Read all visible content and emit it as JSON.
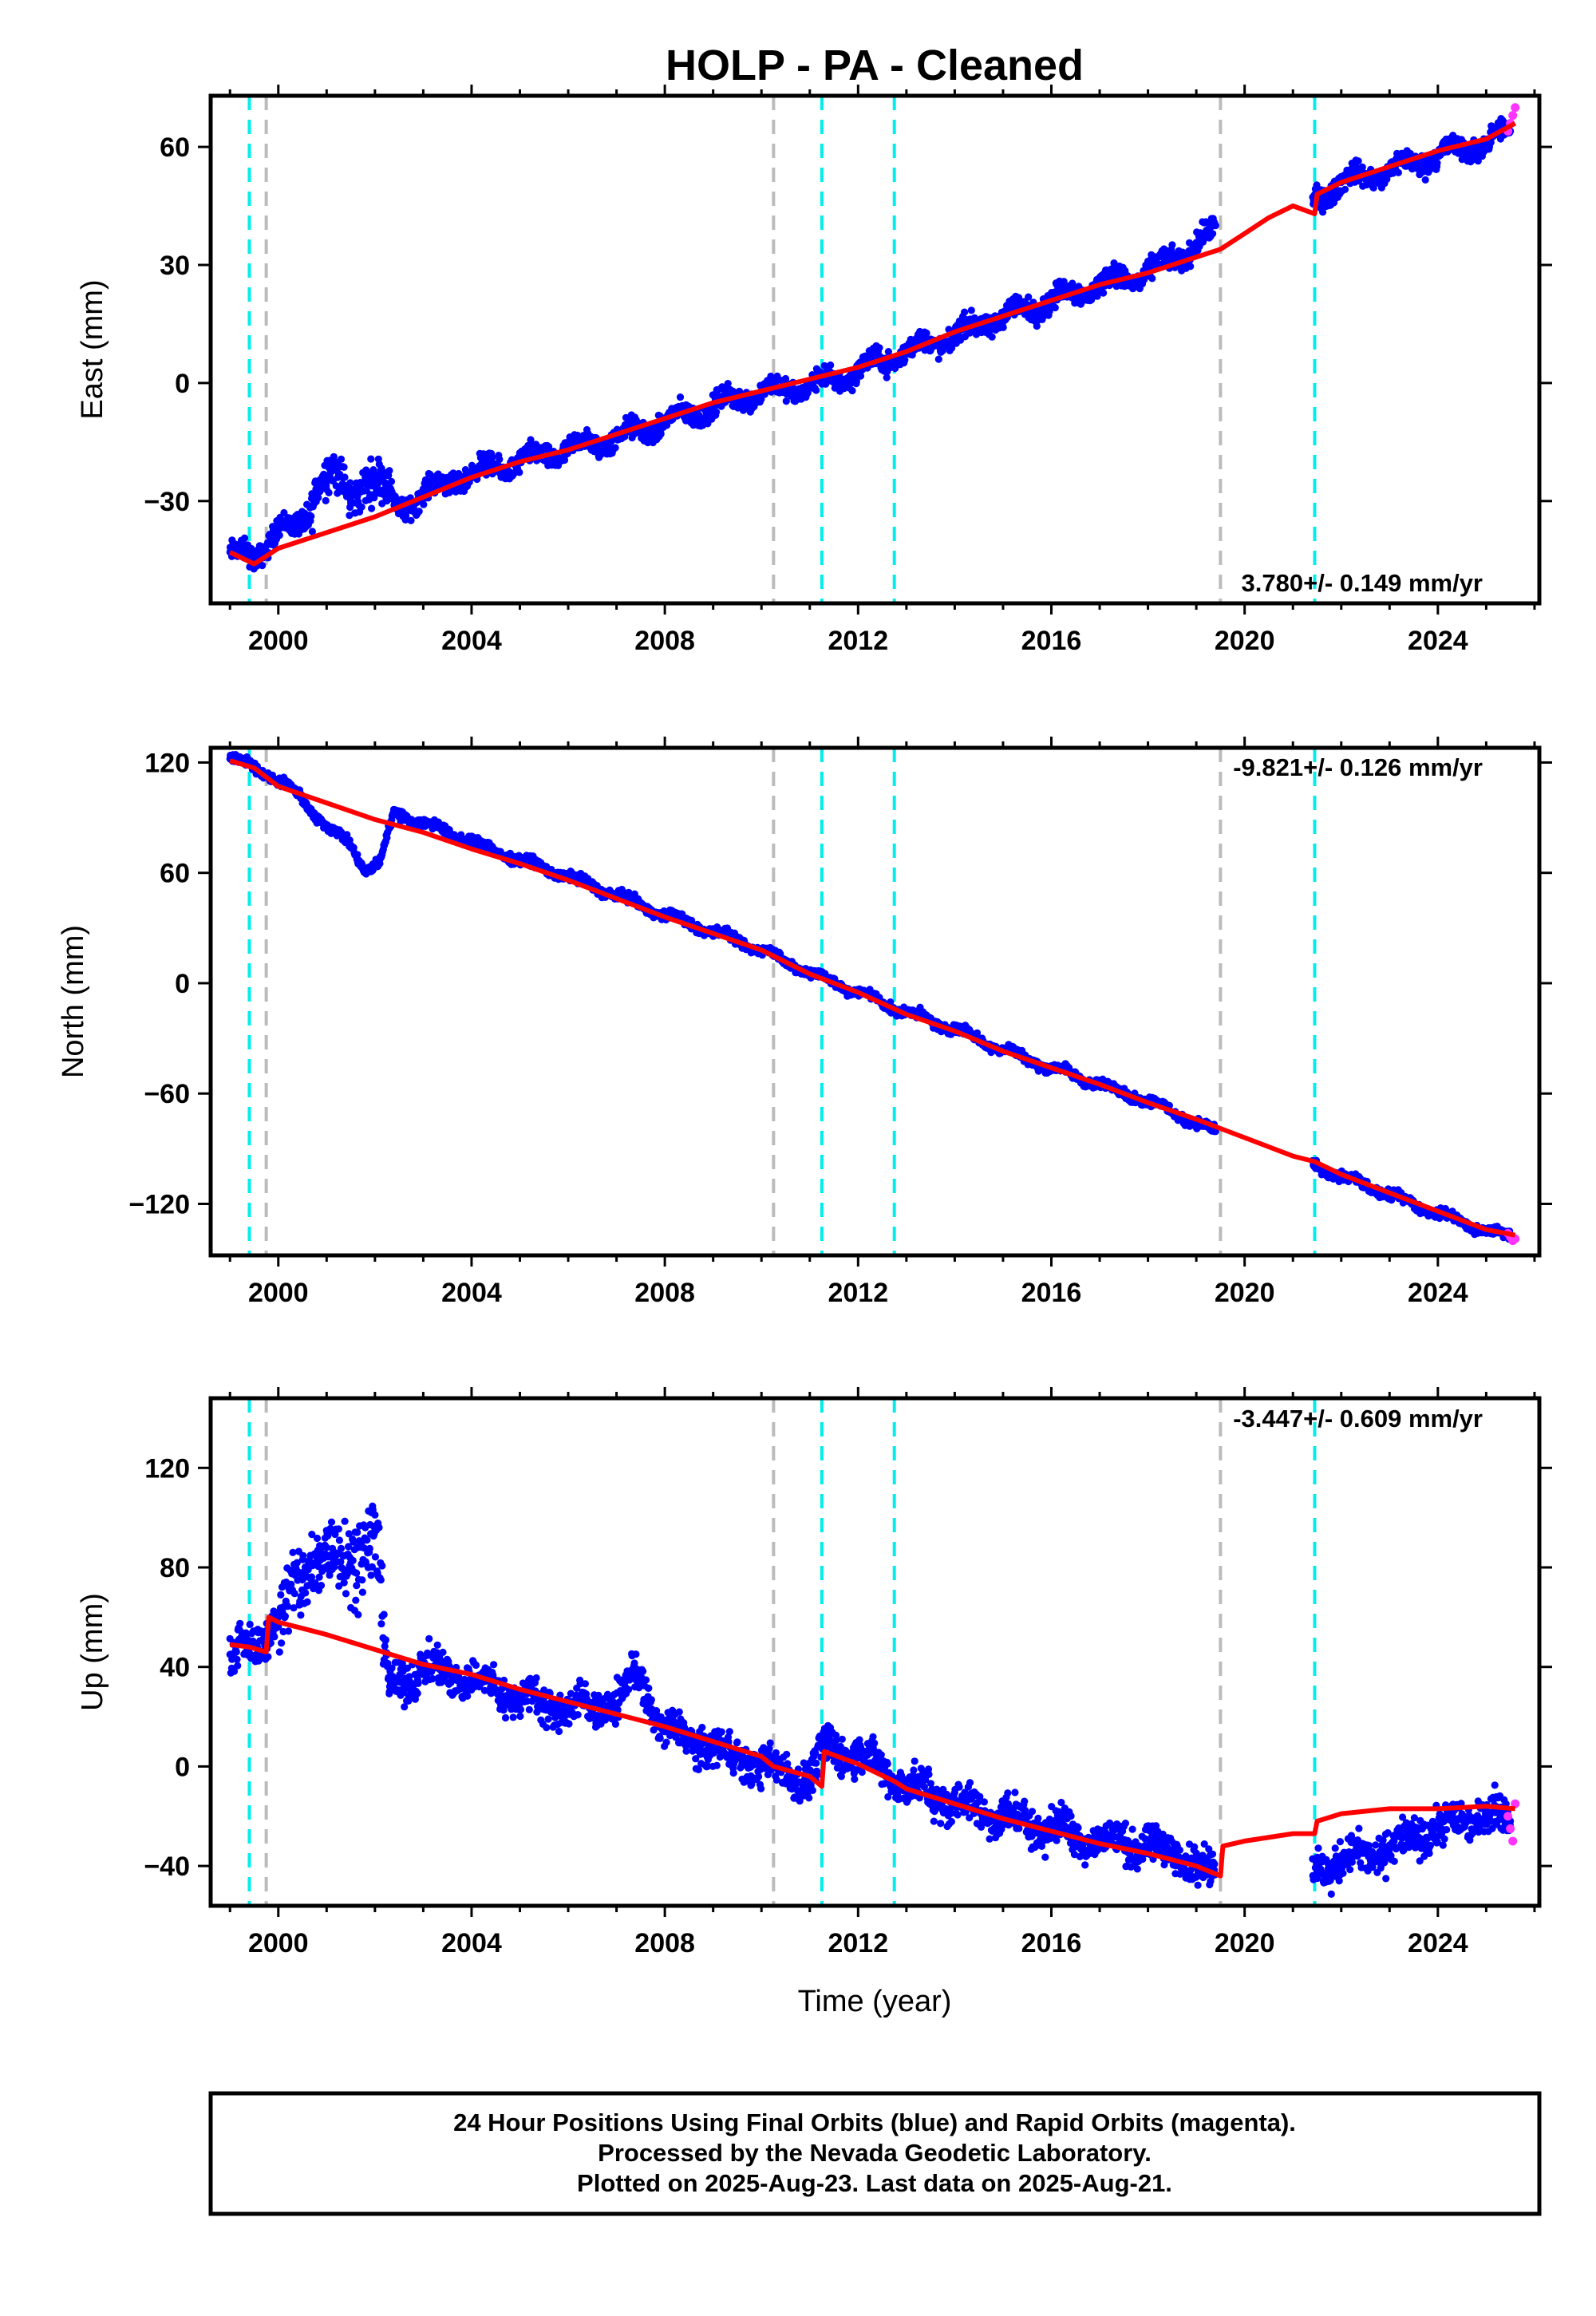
{
  "title": "HOLP  - PA - Cleaned",
  "xlabel": "Time (year)",
  "colors": {
    "final_orbits": "#0000ff",
    "rapid_orbits": "#ff33ff",
    "model": "#ff0000",
    "equipment_change": "#00eeee",
    "other_event": "#bbbbbb"
  },
  "footer": {
    "line1": "24 Hour Positions Using Final Orbits (blue) and Rapid Orbits (magenta).",
    "line2": "Processed by the Nevada Geodetic Laboratory.",
    "line3": "Plotted on 2025-Aug-23. Last data on 2025-Aug-21."
  },
  "chart_data": [
    {
      "type": "scatter",
      "component": "east",
      "ylabel": "East (mm)",
      "xlim": [
        1998.6,
        2026.1
      ],
      "ylim": [
        -56,
        73
      ],
      "xticks": [
        2000,
        2004,
        2008,
        2012,
        2016,
        2020,
        2024
      ],
      "yticks": [
        -30,
        0,
        30,
        60
      ],
      "rate_text": "3.780+/- 0.149 mm/yr",
      "rate_position": "bottom-right",
      "vlines_cyan": [
        1999.4,
        2011.25,
        2012.75,
        2021.45
      ],
      "vlines_gray": [
        1999.75,
        2010.25,
        2019.5
      ],
      "gaps": [
        [
          2019.4,
          2021.4
        ]
      ],
      "series": [
        {
          "role": "final_orbits",
          "x": [
            1999.0,
            1999.5,
            2000.0,
            2000.3,
            2000.6,
            2000.8,
            2001.1,
            2001.5,
            2001.8,
            2002.1,
            2002.5,
            2003.0,
            2004.0,
            2005.0,
            2006.0,
            2007.0,
            2008.0,
            2009.0,
            2010.0,
            2011.0,
            2012.0,
            2013.0,
            2014.0,
            2015.0,
            2016.0,
            2017.0,
            2018.0,
            2019.0,
            2019.3,
            2021.5,
            2022.0,
            2023.0,
            2024.0,
            2025.0,
            2025.5
          ],
          "y": [
            -43,
            -45,
            -36,
            -38,
            -35,
            -25,
            -22,
            -30,
            -24,
            -25,
            -32,
            -28,
            -23,
            -20,
            -17,
            -14,
            -10,
            -6,
            -2,
            -1,
            3,
            8,
            12,
            17,
            21,
            25,
            28,
            35,
            38,
            47,
            51,
            54,
            58,
            61,
            64
          ]
        },
        {
          "role": "rapid_orbits",
          "x": [
            2025.45,
            2025.5,
            2025.55,
            2025.6
          ],
          "y": [
            64,
            66,
            68,
            70
          ]
        },
        {
          "role": "model",
          "x": [
            1999.0,
            1999.5,
            2000.0,
            2001.0,
            2002.0,
            2003.0,
            2004.0,
            2005.0,
            2006.0,
            2007.0,
            2008.0,
            2009.0,
            2010.0,
            2011.0,
            2012.0,
            2013.0,
            2014.0,
            2015.0,
            2016.0,
            2017.0,
            2018.0,
            2019.0,
            2019.5,
            2020.0,
            2020.5,
            2021.0,
            2021.45,
            2021.5,
            2022.0,
            2023.0,
            2024.0,
            2025.0,
            2025.6
          ],
          "y": [
            -43,
            -46,
            -42,
            -38,
            -34,
            -29,
            -24,
            -20,
            -17,
            -13,
            -9,
            -5,
            -2,
            1,
            4,
            8,
            13,
            17,
            21,
            25,
            28,
            32,
            34,
            38,
            42,
            45,
            43,
            48,
            51,
            55,
            59,
            62,
            66
          ]
        }
      ]
    },
    {
      "type": "scatter",
      "component": "north",
      "ylabel": "North (mm)",
      "xlim": [
        1998.6,
        2026.1
      ],
      "ylim": [
        -148,
        128
      ],
      "xticks": [
        2000,
        2004,
        2008,
        2012,
        2016,
        2020,
        2024
      ],
      "yticks": [
        -120,
        -60,
        0,
        60,
        120
      ],
      "rate_text": "-9.821+/- 0.126 mm/yr",
      "rate_position": "top-right",
      "vlines_cyan": [
        1999.4,
        2011.25,
        2012.75,
        2021.45
      ],
      "vlines_gray": [
        1999.75,
        2010.25,
        2019.5
      ],
      "gaps": [
        [
          2019.4,
          2021.4
        ]
      ],
      "series": [
        {
          "role": "final_orbits",
          "x": [
            1999.0,
            1999.5,
            2000.0,
            2000.5,
            2001.0,
            2001.5,
            2001.8,
            2002.1,
            2002.4,
            2003.0,
            2004.0,
            2005.0,
            2006.0,
            2007.0,
            2008.0,
            2009.0,
            2010.0,
            2011.0,
            2012.0,
            2013.0,
            2014.0,
            2015.0,
            2016.0,
            2017.0,
            2018.0,
            2019.0,
            2019.3,
            2021.5,
            2022.0,
            2023.0,
            2024.0,
            2025.0,
            2025.5
          ],
          "y": [
            122,
            118,
            110,
            100,
            85,
            75,
            62,
            65,
            93,
            87,
            77,
            67,
            58,
            48,
            37,
            28,
            18,
            6,
            -5,
            -16,
            -25,
            -36,
            -46,
            -55,
            -64,
            -76,
            -80,
            -100,
            -105,
            -115,
            -125,
            -135,
            -138
          ]
        },
        {
          "role": "rapid_orbits",
          "x": [
            2025.45,
            2025.5,
            2025.55,
            2025.6
          ],
          "y": [
            -136,
            -138,
            -140,
            -139
          ]
        },
        {
          "role": "model",
          "x": [
            1999.0,
            1999.5,
            2000.0,
            2001.0,
            2002.0,
            2003.0,
            2004.0,
            2005.0,
            2006.0,
            2007.0,
            2008.0,
            2009.0,
            2010.0,
            2011.0,
            2012.0,
            2013.0,
            2014.0,
            2015.0,
            2016.0,
            2017.0,
            2018.0,
            2019.0,
            2019.5,
            2020.0,
            2021.0,
            2021.45,
            2022.0,
            2023.0,
            2024.0,
            2025.0,
            2025.6
          ],
          "y": [
            121,
            117,
            107,
            98,
            89,
            82,
            73,
            65,
            56,
            46,
            36,
            27,
            18,
            5,
            -5,
            -17,
            -26,
            -37,
            -46,
            -55,
            -65,
            -74,
            -79,
            -84,
            -94,
            -97,
            -104,
            -114,
            -124,
            -134,
            -137
          ]
        }
      ]
    },
    {
      "type": "scatter",
      "component": "up",
      "ylabel": "Up (mm)",
      "xlim": [
        1998.6,
        2026.1
      ],
      "ylim": [
        -56,
        148
      ],
      "xticks": [
        2000,
        2004,
        2008,
        2012,
        2016,
        2020,
        2024
      ],
      "yticks": [
        -40,
        0,
        40,
        80,
        120
      ],
      "rate_text": "-3.447+/- 0.609 mm/yr",
      "rate_position": "top-right",
      "vlines_cyan": [
        1999.4,
        2011.25,
        2012.75,
        2021.45
      ],
      "vlines_gray": [
        1999.75,
        2010.25,
        2019.5
      ],
      "gaps": [
        [
          2019.4,
          2021.4
        ]
      ],
      "series": [
        {
          "role": "final_orbits",
          "x": [
            1999.0,
            1999.5,
            2000.0,
            2000.5,
            2001.0,
            2001.5,
            2002.0,
            2002.3,
            2003.0,
            2004.0,
            2005.0,
            2006.0,
            2007.0,
            2007.4,
            2008.0,
            2009.0,
            2010.0,
            2011.0,
            2011.3,
            2012.0,
            2013.0,
            2014.0,
            2015.0,
            2016.0,
            2017.0,
            2018.0,
            2019.0,
            2019.3,
            2021.5,
            2022.0,
            2023.0,
            2024.0,
            2025.0,
            2025.5
          ],
          "y": [
            45,
            48,
            60,
            75,
            88,
            82,
            95,
            30,
            40,
            35,
            28,
            23,
            25,
            38,
            14,
            8,
            0,
            -5,
            8,
            5,
            -8,
            -15,
            -20,
            -25,
            -30,
            -32,
            -38,
            -43,
            -42,
            -38,
            -33,
            -25,
            -18,
            -22
          ]
        },
        {
          "role": "rapid_orbits",
          "x": [
            2025.45,
            2025.5,
            2025.55,
            2025.6
          ],
          "y": [
            -20,
            -25,
            -30,
            -15
          ]
        },
        {
          "role": "model",
          "x": [
            1999.0,
            1999.4,
            1999.75,
            1999.8,
            2000.0,
            2001.0,
            2002.0,
            2003.0,
            2004.0,
            2005.0,
            2006.0,
            2007.0,
            2008.0,
            2009.0,
            2010.0,
            2010.25,
            2011.0,
            2011.25,
            2011.3,
            2012.0,
            2012.75,
            2013.0,
            2014.0,
            2015.0,
            2016.0,
            2017.0,
            2018.0,
            2019.0,
            2019.5,
            2019.55,
            2020.0,
            2021.0,
            2021.45,
            2021.5,
            2022.0,
            2023.0,
            2024.0,
            2025.0,
            2025.6
          ],
          "y": [
            49,
            48,
            46,
            60,
            58,
            53,
            47,
            41,
            37,
            31,
            26,
            21,
            16,
            10,
            4,
            0,
            -4,
            -8,
            6,
            1,
            -6,
            -9,
            -15,
            -21,
            -26,
            -31,
            -35,
            -40,
            -44,
            -32,
            -30,
            -27,
            -27,
            -22,
            -19,
            -17,
            -17,
            -16,
            -17
          ]
        }
      ]
    }
  ]
}
